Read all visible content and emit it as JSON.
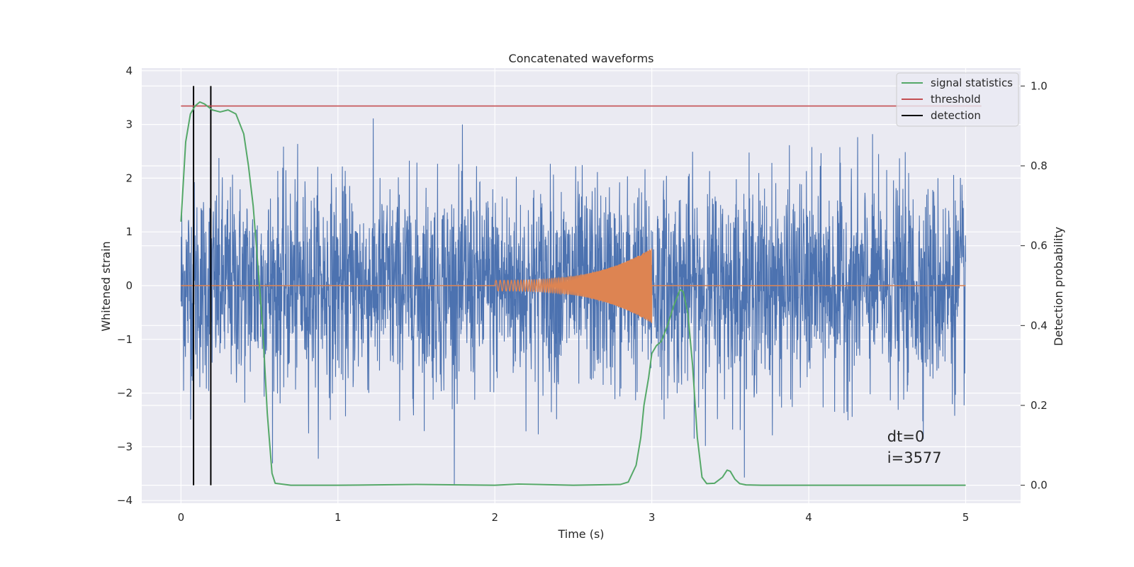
{
  "chart_data": {
    "type": "line",
    "title": "Concatenated waveforms",
    "xlabel": "Time (s)",
    "ylabel_left": "Whitened strain",
    "ylabel_right": "Detection probability",
    "xlim": [
      -0.25,
      5.35
    ],
    "ylim_left": [
      -4.05,
      4.05
    ],
    "ylim_right": [
      -0.045,
      1.045
    ],
    "x_ticks": [
      "0",
      "1",
      "2",
      "3",
      "4",
      "5"
    ],
    "y_ticks_left": [
      "4",
      "3",
      "2",
      "1",
      "0",
      "−1",
      "−2",
      "−3",
      "−4"
    ],
    "y_ticks_right": [
      "1.0",
      "0.8",
      "0.6",
      "0.4",
      "0.2",
      "0.0"
    ],
    "grid": true,
    "legend_placement": "top-right",
    "legend": [
      "signal statistics",
      "threshold",
      "detection"
    ],
    "series": [
      {
        "axis": "left",
        "color": "#4c72b0",
        "kind": "whitened noise strain, t = 0 to 5 s",
        "envelope_max": 3.65,
        "envelope_min": -3.7
      },
      {
        "axis": "left",
        "color": "#dd8452",
        "kind": "chirp waveform",
        "t_start": 2.0,
        "t_end": 3.0,
        "amp_start": 0.1,
        "amp_end": 0.7
      },
      {
        "axis": "right",
        "name": "signal statistics",
        "color": "#55a868",
        "x": [
          0,
          0.03,
          0.06,
          0.09,
          0.12,
          0.15,
          0.2,
          0.25,
          0.3,
          0.35,
          0.4,
          0.43,
          0.46,
          0.49,
          0.52,
          0.55,
          0.58,
          0.6,
          0.7,
          1.0,
          1.5,
          2.0,
          2.15,
          2.5,
          2.8,
          2.85,
          2.9,
          2.93,
          2.95,
          2.98,
          3.0,
          3.03,
          3.06,
          3.1,
          3.14,
          3.18,
          3.2,
          3.23,
          3.26,
          3.29,
          3.32,
          3.35,
          3.4,
          3.45,
          3.48,
          3.5,
          3.53,
          3.56,
          3.6,
          3.7,
          4.0,
          4.5,
          5.0
        ],
        "y": [
          0.66,
          0.86,
          0.93,
          0.95,
          0.96,
          0.955,
          0.94,
          0.935,
          0.94,
          0.93,
          0.88,
          0.8,
          0.7,
          0.55,
          0.4,
          0.18,
          0.03,
          0.005,
          0.0,
          0.0,
          0.002,
          0.0,
          0.003,
          0.0,
          0.002,
          0.008,
          0.05,
          0.12,
          0.2,
          0.27,
          0.33,
          0.35,
          0.36,
          0.4,
          0.45,
          0.49,
          0.485,
          0.43,
          0.3,
          0.12,
          0.02,
          0.004,
          0.005,
          0.02,
          0.038,
          0.035,
          0.015,
          0.004,
          0.001,
          0.0,
          0.0,
          0.0,
          0.0
        ]
      },
      {
        "axis": "right",
        "name": "threshold",
        "color": "#c44e52",
        "x": [
          0,
          5.1
        ],
        "y": [
          0.95,
          0.95
        ]
      },
      {
        "axis": "right",
        "name": "detection",
        "color": "#000000",
        "x_positions": [
          0.08,
          0.19
        ],
        "y_range": [
          0.0,
          1.0
        ]
      }
    ],
    "annotation": {
      "line1": "dt=0",
      "line2": "i=3577",
      "x": 4.5,
      "y_line1": -2.9,
      "y_line2": -3.3
    }
  }
}
